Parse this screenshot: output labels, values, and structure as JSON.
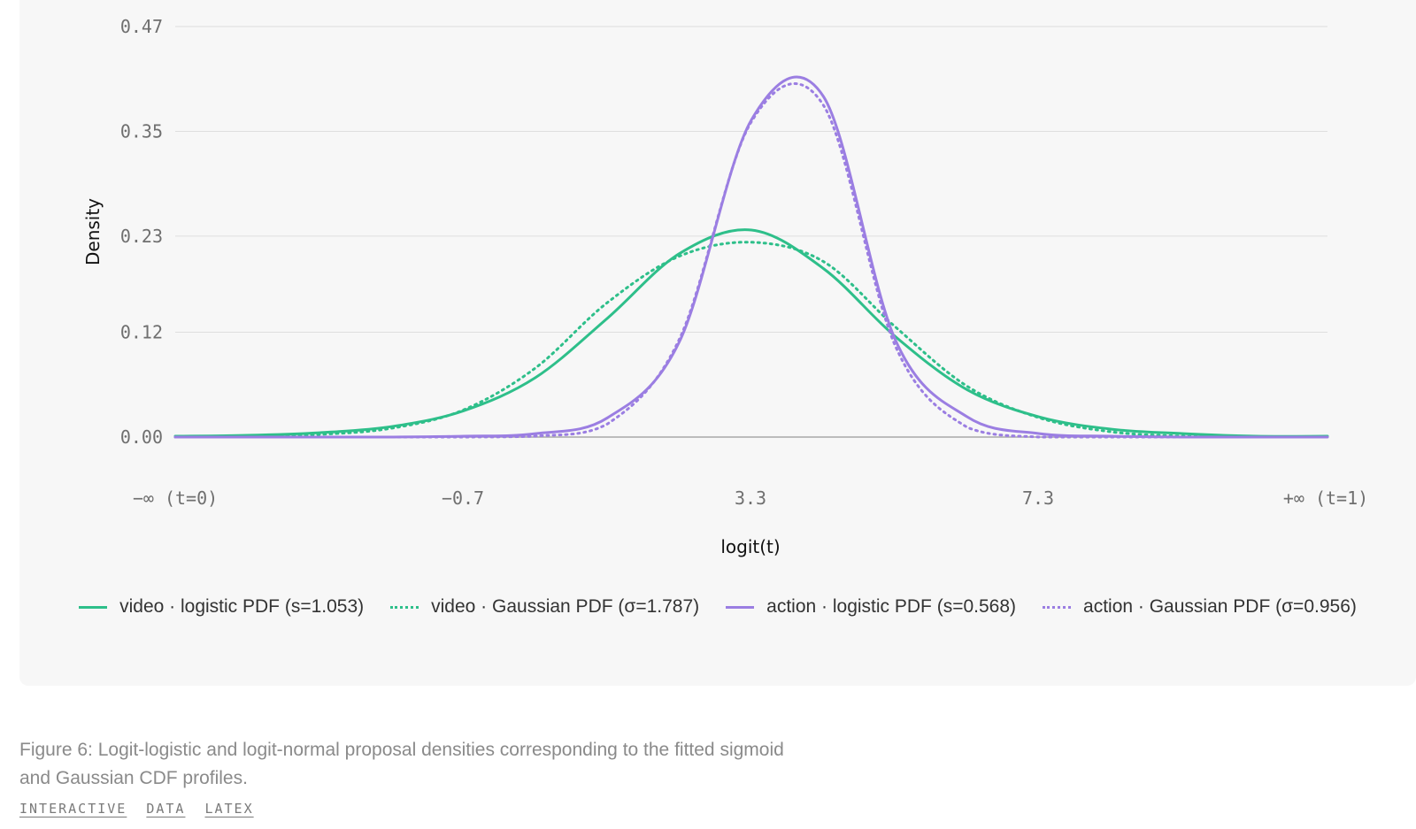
{
  "chart_data": {
    "type": "line",
    "xlabel": "logit(t)",
    "ylabel": "Density",
    "xlim": [
      -5.0,
      11.0
    ],
    "ylim": [
      0.0,
      0.47
    ],
    "yticks": [
      {
        "value": 0.47,
        "label": "0.47"
      },
      {
        "value": 0.35,
        "label": "0.35"
      },
      {
        "value": 0.23,
        "label": "0.23"
      },
      {
        "value": 0.12,
        "label": "0.12"
      },
      {
        "value": 0.0,
        "label": "0.00"
      }
    ],
    "xticks": [
      {
        "value": -4.7,
        "label": "−∞ (t=0)"
      },
      {
        "value": -0.7,
        "label": "−0.7"
      },
      {
        "value": 3.3,
        "label": "3.3"
      },
      {
        "value": 7.3,
        "label": "7.3"
      },
      {
        "value": 11.3,
        "label": "+∞ (t=1)"
      }
    ],
    "x": [
      -4.7,
      -3.7,
      -2.7,
      -1.7,
      -0.7,
      0.3,
      1.3,
      2.3,
      3.3,
      4.3,
      5.3,
      6.3,
      7.3,
      8.3,
      9.3,
      10.3,
      11.3
    ],
    "series": [
      {
        "name": "video · logistic PDF (s=1.053)",
        "color": "#2ebf8a",
        "dash": "solid",
        "values": [
          0.001,
          0.002,
          0.005,
          0.012,
          0.03,
          0.068,
          0.136,
          0.21,
          0.237,
          0.193,
          0.115,
          0.054,
          0.023,
          0.009,
          0.004,
          0.001,
          0.001
        ]
      },
      {
        "name": "video · Gaussian PDF (σ=1.787)",
        "color": "#2ebf8a",
        "dash": "dotted",
        "values": [
          0.0,
          0.001,
          0.003,
          0.01,
          0.031,
          0.079,
          0.154,
          0.207,
          0.223,
          0.201,
          0.126,
          0.058,
          0.022,
          0.006,
          0.001,
          0.0,
          0.0
        ]
      },
      {
        "name": "action · logistic PDF (s=0.568)",
        "color": "#9b7ee2",
        "dash": "solid",
        "values": [
          0.0,
          0.0,
          0.0,
          0.0,
          0.001,
          0.004,
          0.022,
          0.109,
          0.363,
          0.39,
          0.111,
          0.023,
          0.004,
          0.001,
          0.0,
          0.0,
          0.0
        ]
      },
      {
        "name": "action · Gaussian PDF (σ=0.956)",
        "color": "#9b7ee2",
        "dash": "dotted",
        "values": [
          0.0,
          0.0,
          0.0,
          0.0,
          0.0,
          0.001,
          0.015,
          0.112,
          0.361,
          0.38,
          0.104,
          0.011,
          0.0,
          0.0,
          0.0,
          0.0,
          0.0
        ]
      }
    ]
  },
  "caption": "Figure 6: Logit-logistic and logit-normal proposal densities corresponding to the fitted sigmoid and Gaussian CDF profiles.",
  "links": [
    "INTERACTIVE",
    "DATA",
    "LATEX"
  ]
}
